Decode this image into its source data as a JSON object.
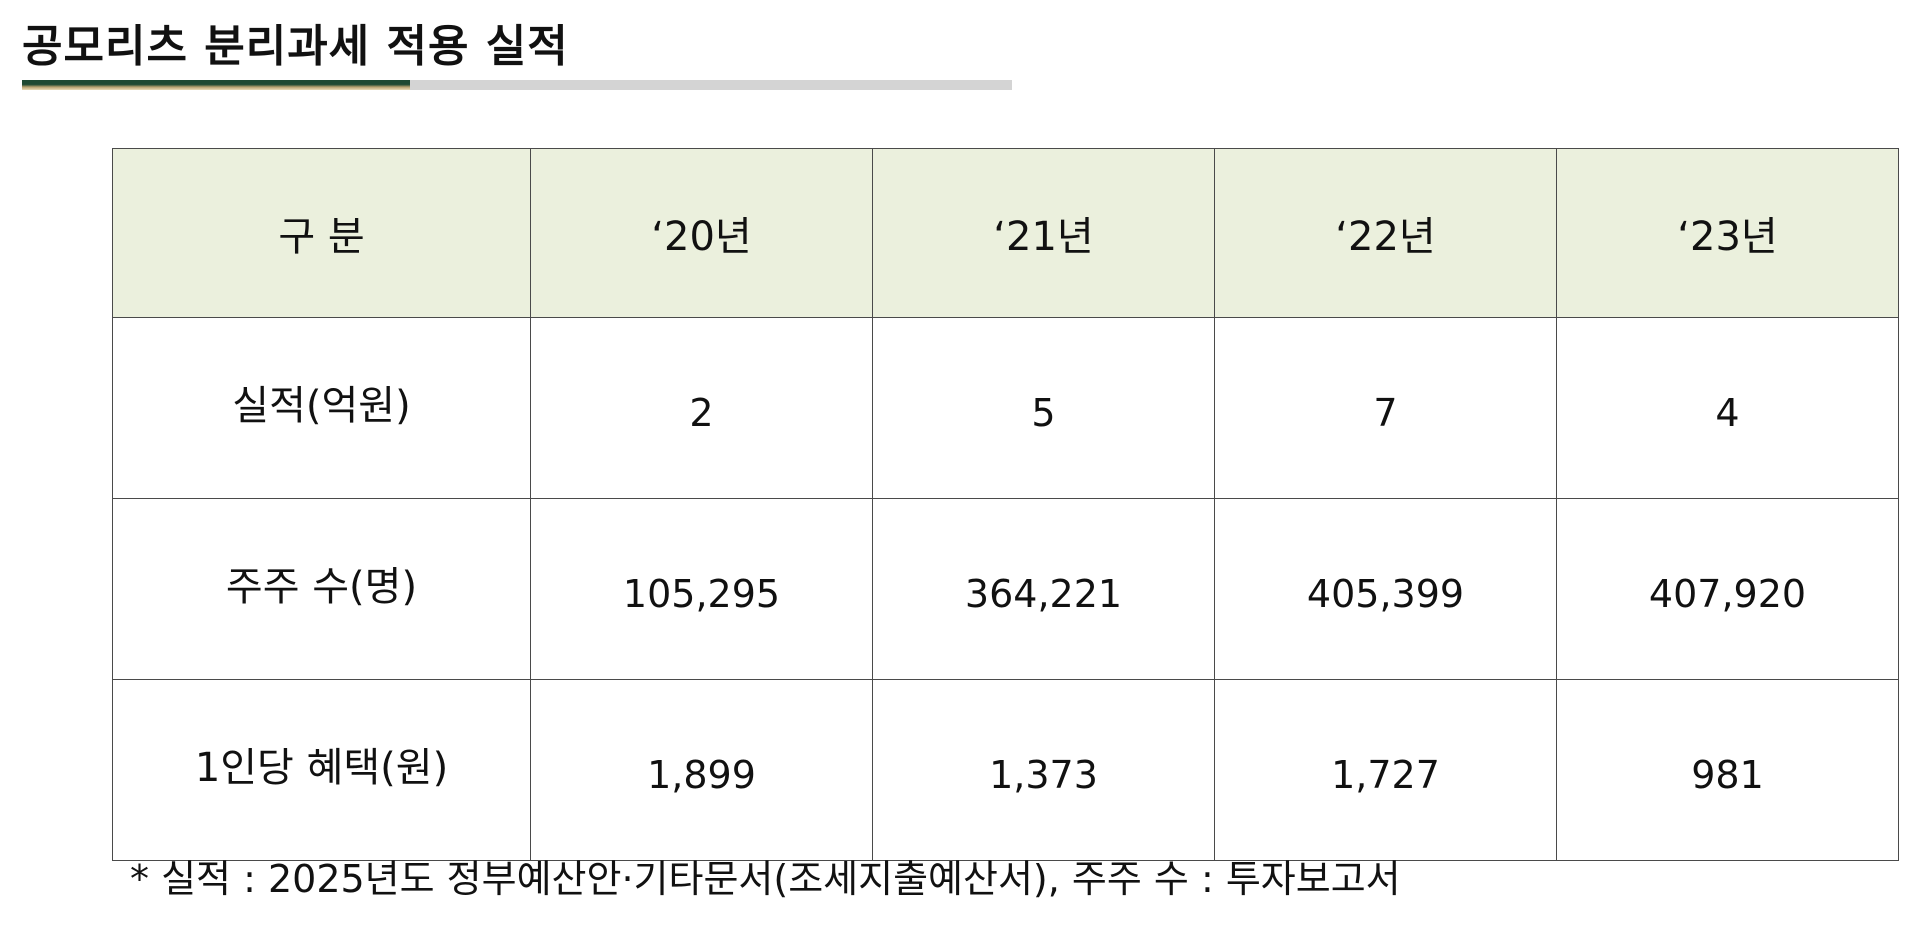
{
  "title": "공모리츠 분리과세 적용 실적",
  "table": {
    "header": {
      "label": "구 분",
      "years": [
        "‘20년",
        "‘21년",
        "‘22년",
        "‘23년"
      ]
    },
    "rows": [
      {
        "label": "실적(억원)",
        "values": [
          "2",
          "5",
          "7",
          "4"
        ]
      },
      {
        "label": "주주 수(명)",
        "values": [
          "105,295",
          "364,221",
          "405,399",
          "407,920"
        ]
      },
      {
        "label": "1인당 혜택(원)",
        "values": [
          "1,899",
          "1,373",
          "1,727",
          "981"
        ]
      }
    ]
  },
  "footnote": "* 실적 : 2025년도 정부예산안·기타문서(조세지출예산서), 주주 수 : 투자보고서",
  "colors": {
    "header_bg": "#ebf0dd",
    "accent": "#1e4a33",
    "rule": "#d4d4d4"
  }
}
